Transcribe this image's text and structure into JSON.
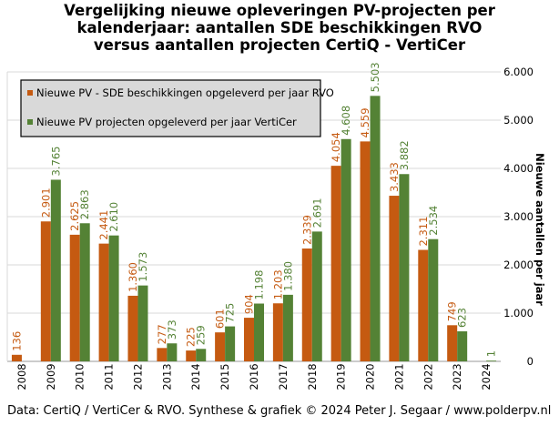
{
  "chart_data": {
    "type": "bar",
    "title_lines": [
      "Vergelijking  nieuwe opleveringen PV-projecten per",
      "kalenderjaar: aantallen SDE beschikkingen  RVO",
      "versus aantallen projecten CertiQ - VertiCer"
    ],
    "ylabel": "Nieuwe aantallen per jaar",
    "ylim": [
      0,
      6000
    ],
    "yticks": [
      "0",
      "1.000",
      "2.000",
      "3.000",
      "4.000",
      "5.000",
      "6.000"
    ],
    "ytick_values": [
      0,
      1000,
      2000,
      3000,
      4000,
      5000,
      6000
    ],
    "grid": true,
    "legend_position": "top-left",
    "categories": [
      "2008",
      "2009",
      "2010",
      "2011",
      "2012",
      "2013",
      "2014",
      "2015",
      "2016",
      "2017",
      "2018",
      "2019",
      "2020",
      "2021",
      "2022",
      "2023",
      "2024"
    ],
    "series": [
      {
        "name": "Nieuwe PV - SDE beschikkingen opgeleverd per jaar RVO",
        "color": "#c55a11",
        "values": [
          136,
          2901,
          2625,
          2441,
          1360,
          277,
          225,
          601,
          904,
          1203,
          2339,
          4054,
          4559,
          3433,
          2311,
          749,
          null
        ],
        "labels": [
          "136",
          "2.901",
          "2.625",
          "2.441",
          "1.360",
          "277",
          "225",
          "601",
          "904",
          "1.203",
          "2.339",
          "4.054",
          "4.559",
          "3.433",
          "2.311",
          "749",
          ""
        ]
      },
      {
        "name": "Nieuwe PV projecten opgeleverd per jaar VertiCer",
        "color": "#548235",
        "values": [
          null,
          3765,
          2863,
          2610,
          1573,
          373,
          259,
          725,
          1198,
          1380,
          2691,
          4608,
          5503,
          3882,
          2534,
          623,
          1
        ],
        "labels": [
          "",
          "3.765",
          "2.863",
          "2.610",
          "1.573",
          "373",
          "259",
          "725",
          "1.198",
          "1.380",
          "2.691",
          "4.608",
          "5.503",
          "3.882",
          "2.534",
          "623",
          "1"
        ]
      }
    ]
  },
  "footer": "Data: CertiQ / VertiCer & RVO. Synthese & grafiek © 2024 Peter J. Segaar / www.polderpv.nl"
}
